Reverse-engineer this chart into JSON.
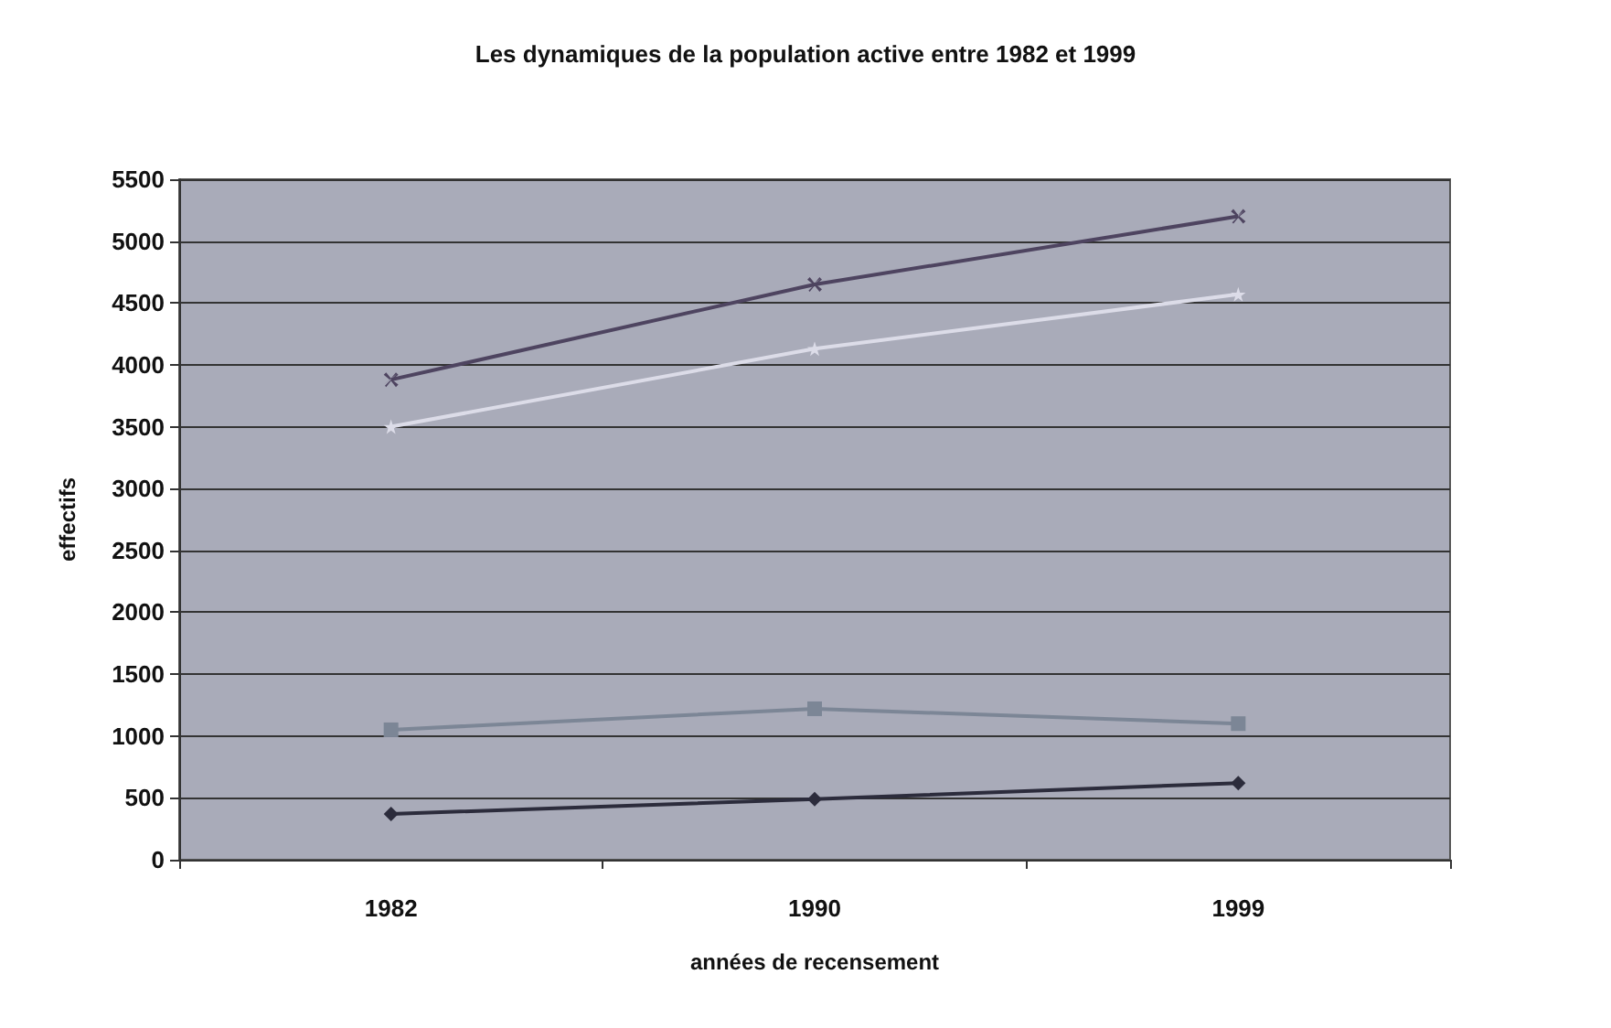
{
  "chart_data": {
    "type": "line",
    "title": "Les dynamiques de la population active entre 1982 et 1999",
    "xlabel": "années de recensement",
    "ylabel": "effectifs",
    "categories": [
      "1982",
      "1990",
      "1999"
    ],
    "series": [
      {
        "color": "#4e4460",
        "marker": "cross",
        "values": [
          3880,
          4650,
          5200
        ]
      },
      {
        "color": "#dcdce8",
        "marker": "star",
        "values": [
          3500,
          4130,
          4570
        ]
      },
      {
        "color": "#7c8696",
        "marker": "square",
        "values": [
          1050,
          1220,
          1100
        ]
      },
      {
        "color": "#2c2c3c",
        "marker": "diamond",
        "values": [
          370,
          490,
          620
        ]
      }
    ],
    "ylim": [
      0,
      5500
    ],
    "yticks": [
      0,
      500,
      1000,
      1500,
      2000,
      2500,
      3000,
      3500,
      4000,
      4500,
      5000,
      5500
    ],
    "grid": "y",
    "line_style": "solid"
  }
}
